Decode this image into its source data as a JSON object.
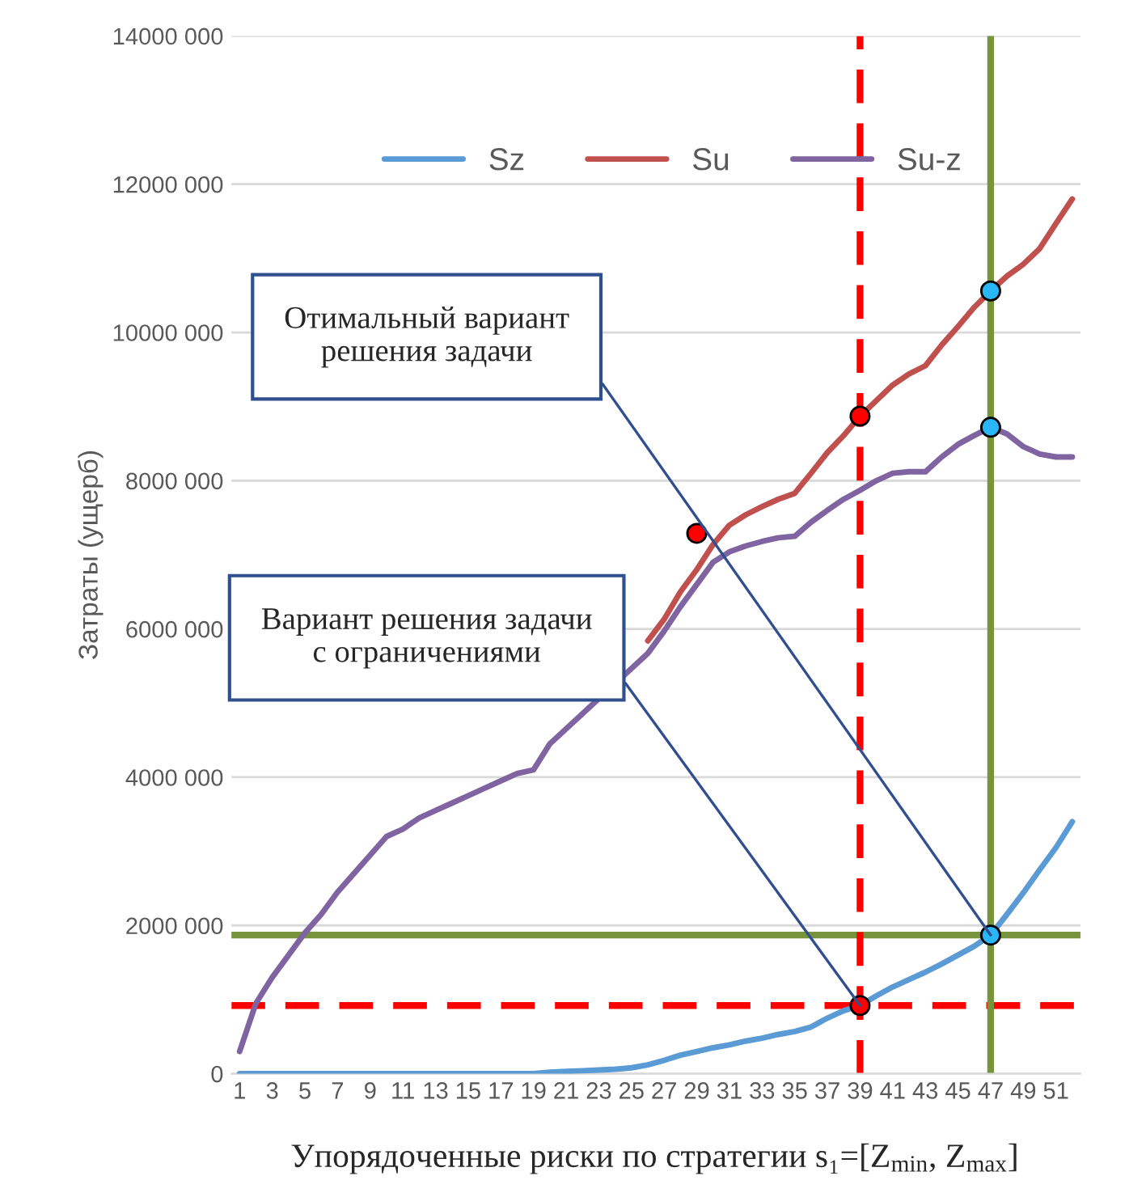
{
  "chart_data": {
    "type": "line",
    "xlabel": "Упорядоченные риски по стратегии s₁=[Z$_{min}$, Z$_{max}$]",
    "ylabel": "Затраты (ущерб)",
    "x": [
      1,
      2,
      3,
      4,
      5,
      6,
      7,
      8,
      9,
      10,
      11,
      12,
      13,
      14,
      15,
      16,
      17,
      18,
      19,
      20,
      21,
      22,
      23,
      24,
      25,
      26,
      27,
      28,
      29,
      30,
      31,
      32,
      33,
      34,
      35,
      36,
      37,
      38,
      39,
      40,
      41,
      42,
      43,
      44,
      45,
      46,
      47,
      48,
      49,
      50,
      51,
      52
    ],
    "xlim": [
      0.5,
      52.5
    ],
    "xticks": [
      1,
      3,
      5,
      7,
      9,
      11,
      13,
      15,
      17,
      19,
      21,
      23,
      25,
      27,
      29,
      31,
      33,
      35,
      37,
      39,
      41,
      43,
      45,
      47,
      49,
      51
    ],
    "ylim": [
      0,
      14000000
    ],
    "yticks": [
      0,
      {
        "value": 2000000,
        "label": "2000 000"
      },
      {
        "value": 4000000,
        "label": "4000 000"
      },
      {
        "value": 6000000,
        "label": "6000 000"
      },
      {
        "value": 8000000,
        "label": "8000 000"
      },
      {
        "value": 10000000,
        "label": "10000 000"
      },
      {
        "value": 12000000,
        "label": "12000 000"
      },
      {
        "value": 14000000,
        "label": "14000 000"
      }
    ],
    "grid": "y",
    "legend": "top",
    "series": [
      {
        "name": "Sz",
        "color": "#5b9bd5",
        "values": [
          0,
          0,
          0,
          0,
          0,
          0,
          0,
          0,
          0,
          0,
          0,
          0,
          0,
          0,
          0,
          0,
          0,
          0,
          0,
          20000,
          30000,
          40000,
          50000,
          60000,
          80000,
          120000,
          180000,
          250000,
          300000,
          350000,
          390000,
          440000,
          480000,
          530000,
          570000,
          630000,
          750000,
          850000,
          920000,
          1050000,
          1170000,
          1270000,
          1370000,
          1480000,
          1600000,
          1720000,
          1870000,
          2150000,
          2440000,
          2750000,
          3050000,
          3400000
        ]
      },
      {
        "name": "Su",
        "color": "#c0504d",
        "values": [
          null,
          null,
          null,
          null,
          null,
          null,
          null,
          null,
          null,
          null,
          null,
          null,
          null,
          null,
          null,
          null,
          null,
          null,
          null,
          null,
          null,
          null,
          null,
          null,
          null,
          5840000,
          6130000,
          6500000,
          6800000,
          7140000,
          7400000,
          7540000,
          7650000,
          7750000,
          7830000,
          8100000,
          8380000,
          8610000,
          8870000,
          9080000,
          9290000,
          9440000,
          9550000,
          9830000,
          10080000,
          10340000,
          10560000,
          10760000,
          10920000,
          11130000,
          11470000,
          11800000
        ]
      },
      {
        "name": "Su-z",
        "color": "#8064a2",
        "values": [
          300000,
          950000,
          1300000,
          1600000,
          1900000,
          2150000,
          2450000,
          2700000,
          2950000,
          3200000,
          3300000,
          3450000,
          3550000,
          3650000,
          3750000,
          3850000,
          3950000,
          4050000,
          4100000,
          4450000,
          null,
          null,
          null,
          null,
          null,
          5670000,
          5970000,
          6300000,
          6600000,
          6900000,
          7040000,
          7120000,
          7180000,
          7230000,
          7250000,
          7440000,
          7600000,
          7750000,
          7870000,
          8000000,
          8100000,
          8120000,
          8120000,
          8320000,
          8490000,
          8610000,
          8720000,
          8630000,
          8460000,
          8360000,
          8320000,
          8320000
        ]
      },
      {
        "type": "scatter",
        "color": "#ff0000",
        "marker": "circle",
        "x": [
          29,
          39,
          39
        ],
        "values": [
          7290000,
          8870000,
          920000
        ]
      },
      {
        "type": "scatter",
        "color": "#29b6f6",
        "marker": "circle",
        "x": [
          47,
          47,
          47
        ],
        "values": [
          10560000,
          8720000,
          1870000
        ]
      }
    ],
    "ref_lines": [
      {
        "axis": "y",
        "value": 1870000,
        "color": "#77933c",
        "line_style": "solid"
      },
      {
        "axis": "y",
        "value": 920000,
        "color": "#ff0000",
        "line_style": "dashed"
      },
      {
        "axis": "x",
        "value": 39,
        "color": "#ff0000",
        "line_style": "dashed"
      },
      {
        "axis": "x",
        "value": 47,
        "color": "#77933c",
        "line_style": "solid"
      }
    ],
    "annotations": [
      {
        "text": "Отимальный вариант\nрешения задачи",
        "x": 47,
        "y": 1870000
      },
      {
        "text": "Вариант решения задачи\nс ограничениями",
        "x": 39,
        "y": 920000
      }
    ]
  }
}
